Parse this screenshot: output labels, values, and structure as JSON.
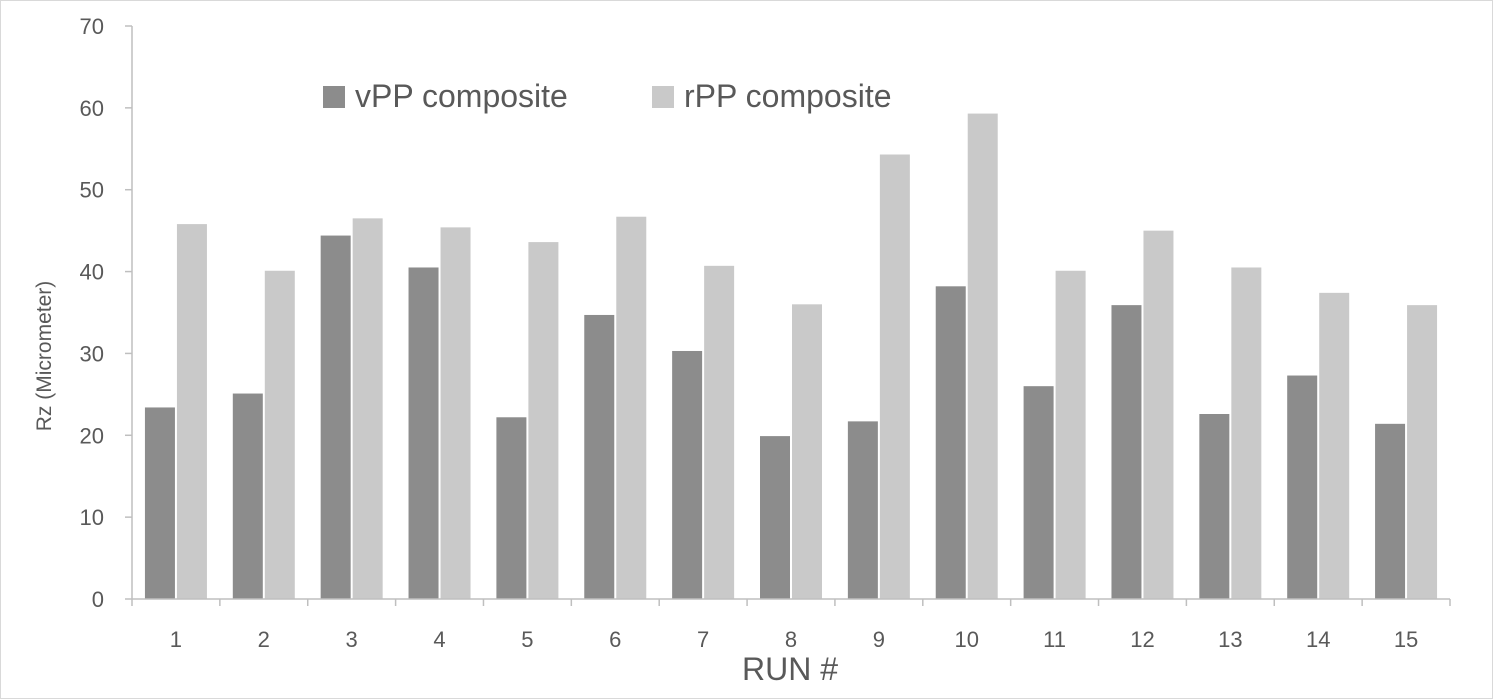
{
  "chart_data": {
    "type": "bar",
    "title": "",
    "xlabel": "RUN #",
    "ylabel": "Rz (Micrometer)",
    "ylim": [
      0,
      70
    ],
    "yticks": [
      "0",
      "10",
      "20",
      "30",
      "40",
      "50",
      "60",
      "70"
    ],
    "categories": [
      "1",
      "2",
      "3",
      "4",
      "5",
      "6",
      "7",
      "8",
      "9",
      "10",
      "11",
      "12",
      "13",
      "14",
      "15"
    ],
    "grid": false,
    "legend_position": "top-left",
    "series": [
      {
        "name": "vPP composite",
        "color": "#8c8c8c",
        "values": [
          23.4,
          25.1,
          44.4,
          40.5,
          22.2,
          34.7,
          30.3,
          19.9,
          21.7,
          38.2,
          26.0,
          35.9,
          22.6,
          27.3,
          21.4
        ]
      },
      {
        "name": "rPP composite",
        "color": "#c9c9c9",
        "values": [
          45.8,
          40.1,
          46.5,
          45.4,
          43.6,
          46.7,
          40.7,
          36.0,
          54.3,
          59.3,
          40.1,
          45.0,
          40.5,
          37.4,
          35.9
        ]
      }
    ]
  }
}
